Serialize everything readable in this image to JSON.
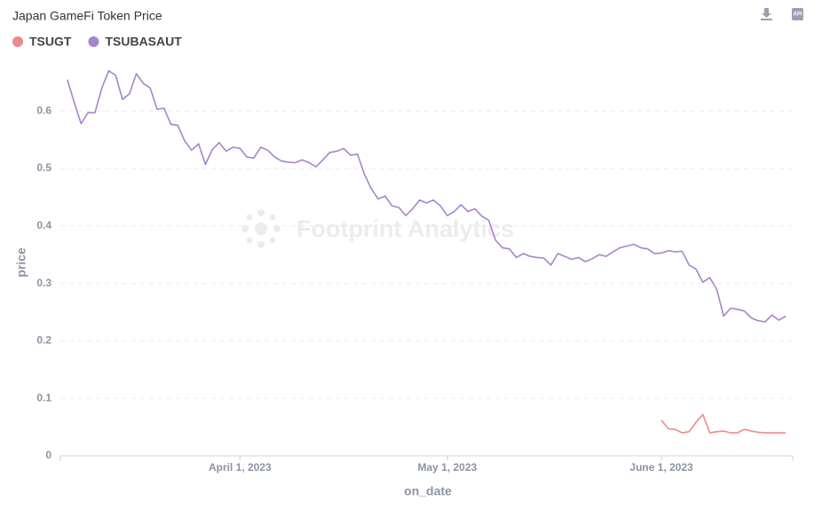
{
  "chart_data": {
    "type": "line",
    "title": "Japan GameFi Token Price",
    "xlabel": "on_date",
    "ylabel": "price",
    "watermark": "Footprint Analytics",
    "legend": "top-left",
    "grid": true,
    "x": [
      "2023-03-07",
      "2023-03-08",
      "2023-03-09",
      "2023-03-10",
      "2023-03-11",
      "2023-03-12",
      "2023-03-13",
      "2023-03-14",
      "2023-03-15",
      "2023-03-16",
      "2023-03-17",
      "2023-03-18",
      "2023-03-19",
      "2023-03-20",
      "2023-03-21",
      "2023-03-22",
      "2023-03-23",
      "2023-03-24",
      "2023-03-25",
      "2023-03-26",
      "2023-03-27",
      "2023-03-28",
      "2023-03-29",
      "2023-03-30",
      "2023-03-31",
      "2023-04-01",
      "2023-04-02",
      "2023-04-03",
      "2023-04-04",
      "2023-04-05",
      "2023-04-06",
      "2023-04-07",
      "2023-04-08",
      "2023-04-09",
      "2023-04-10",
      "2023-04-11",
      "2023-04-12",
      "2023-04-13",
      "2023-04-14",
      "2023-04-15",
      "2023-04-16",
      "2023-04-17",
      "2023-04-18",
      "2023-04-19",
      "2023-04-20",
      "2023-04-21",
      "2023-04-22",
      "2023-04-23",
      "2023-04-24",
      "2023-04-25",
      "2023-04-26",
      "2023-04-27",
      "2023-04-28",
      "2023-04-29",
      "2023-04-30",
      "2023-05-01",
      "2023-05-02",
      "2023-05-03",
      "2023-05-04",
      "2023-05-05",
      "2023-05-06",
      "2023-05-07",
      "2023-05-08",
      "2023-05-09",
      "2023-05-10",
      "2023-05-11",
      "2023-05-12",
      "2023-05-13",
      "2023-05-14",
      "2023-05-15",
      "2023-05-16",
      "2023-05-17",
      "2023-05-18",
      "2023-05-19",
      "2023-05-20",
      "2023-05-21",
      "2023-05-22",
      "2023-05-23",
      "2023-05-24",
      "2023-05-25",
      "2023-05-26",
      "2023-05-27",
      "2023-05-28",
      "2023-05-29",
      "2023-05-30",
      "2023-05-31",
      "2023-06-01",
      "2023-06-02",
      "2023-06-03",
      "2023-06-04",
      "2023-06-05",
      "2023-06-06",
      "2023-06-07",
      "2023-06-08",
      "2023-06-09",
      "2023-06-10",
      "2023-06-11",
      "2023-06-12",
      "2023-06-13",
      "2023-06-14",
      "2023-06-15",
      "2023-06-16",
      "2023-06-17",
      "2023-06-18",
      "2023-06-19"
    ],
    "series": [
      {
        "name": "TSUGT",
        "color": "#f08a8a",
        "values": [
          null,
          null,
          null,
          null,
          null,
          null,
          null,
          null,
          null,
          null,
          null,
          null,
          null,
          null,
          null,
          null,
          null,
          null,
          null,
          null,
          null,
          null,
          null,
          null,
          null,
          null,
          null,
          null,
          null,
          null,
          null,
          null,
          null,
          null,
          null,
          null,
          null,
          null,
          null,
          null,
          null,
          null,
          null,
          null,
          null,
          null,
          null,
          null,
          null,
          null,
          null,
          null,
          null,
          null,
          null,
          null,
          null,
          null,
          null,
          null,
          null,
          null,
          null,
          null,
          null,
          null,
          null,
          null,
          null,
          null,
          null,
          null,
          null,
          null,
          null,
          null,
          null,
          null,
          null,
          null,
          null,
          null,
          null,
          null,
          null,
          null,
          0.062,
          0.047,
          0.046,
          0.04,
          0.042,
          0.058,
          0.072,
          0.04,
          0.042,
          0.043,
          0.04,
          0.04,
          0.046,
          0.043,
          0.041,
          0.04,
          0.04,
          0.04,
          0.04
        ]
      },
      {
        "name": "TSUBASAUT",
        "color": "#a685cc",
        "values": [
          0.655,
          0.615,
          0.578,
          0.597,
          0.597,
          0.64,
          0.67,
          0.662,
          0.62,
          0.63,
          0.665,
          0.648,
          0.64,
          0.603,
          0.605,
          0.577,
          0.575,
          0.548,
          0.532,
          0.543,
          0.507,
          0.533,
          0.545,
          0.53,
          0.537,
          0.535,
          0.52,
          0.518,
          0.537,
          0.532,
          0.52,
          0.513,
          0.511,
          0.51,
          0.515,
          0.51,
          0.503,
          0.515,
          0.528,
          0.53,
          0.535,
          0.523,
          0.525,
          0.49,
          0.465,
          0.447,
          0.452,
          0.435,
          0.432,
          0.418,
          0.43,
          0.445,
          0.44,
          0.445,
          0.435,
          0.418,
          0.425,
          0.437,
          0.425,
          0.43,
          0.417,
          0.41,
          0.375,
          0.362,
          0.36,
          0.345,
          0.352,
          0.347,
          0.345,
          0.344,
          0.332,
          0.352,
          0.347,
          0.342,
          0.345,
          0.338,
          0.343,
          0.35,
          0.347,
          0.355,
          0.362,
          0.365,
          0.368,
          0.362,
          0.36,
          0.352,
          0.353,
          0.357,
          0.355,
          0.356,
          0.332,
          0.325,
          0.302,
          0.31,
          0.29,
          0.243,
          0.257,
          0.255,
          0.252,
          0.24,
          0.235,
          0.233,
          0.245,
          0.236,
          0.243
        ]
      }
    ],
    "xlim": [
      "2023-03-06",
      "2023-06-20"
    ],
    "xticks": [
      {
        "value": "2023-04-01",
        "label": "April 1, 2023"
      },
      {
        "value": "2023-05-01",
        "label": "May 1, 2023"
      },
      {
        "value": "2023-06-01",
        "label": "June 1, 2023"
      }
    ],
    "ylim": [
      0,
      0.7
    ],
    "yticks": [
      0,
      0.1,
      0.2,
      0.3,
      0.4,
      0.5,
      0.6
    ]
  }
}
